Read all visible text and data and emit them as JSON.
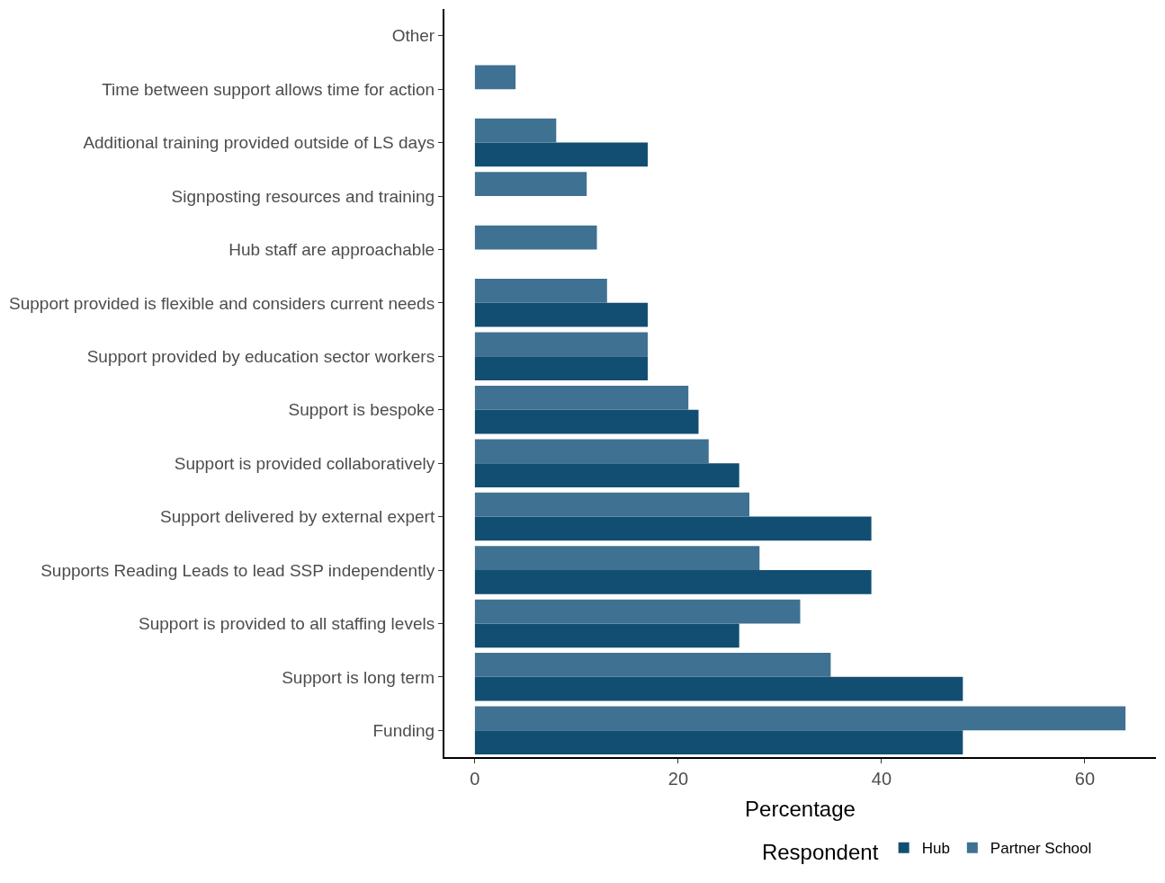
{
  "chart_data": {
    "type": "bar",
    "orientation": "horizontal",
    "xlabel": "Percentage",
    "legend_title": "Respondent",
    "legend": "bottom",
    "categories": [
      "Other",
      "Time between support allows time for action",
      "Additional training provided outside of LS days",
      "Signposting resources and training",
      "Hub staff are approachable",
      "Support provided is flexible and considers current needs",
      "Support provided by education sector workers",
      "Support is bespoke",
      "Support is provided collaboratively",
      "Support delivered by external expert",
      "Supports Reading Leads to lead SSP independently",
      "Support is provided to all staffing levels",
      "Support is long term",
      "Funding"
    ],
    "series": [
      {
        "name": "Hub",
        "color": "#124e72",
        "values": [
          0,
          0,
          17,
          0,
          0,
          17,
          17,
          22,
          26,
          39,
          39,
          26,
          48,
          48
        ]
      },
      {
        "name": "Partner School",
        "color": "#3f7192",
        "values": [
          0,
          4,
          8,
          11,
          12,
          13,
          17,
          21,
          23,
          27,
          28,
          32,
          35,
          64
        ]
      }
    ],
    "xlim": [
      -3,
      67
    ],
    "xticks": [
      0,
      20,
      40,
      60
    ]
  }
}
